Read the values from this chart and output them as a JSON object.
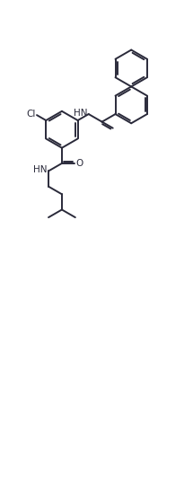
{
  "background_color": "#ffffff",
  "line_color": "#2a2a3a",
  "line_width": 1.4,
  "figsize": [
    2.15,
    5.39
  ],
  "dpi": 100,
  "xlim": [
    0,
    10
  ],
  "ylim": [
    0,
    25
  ]
}
